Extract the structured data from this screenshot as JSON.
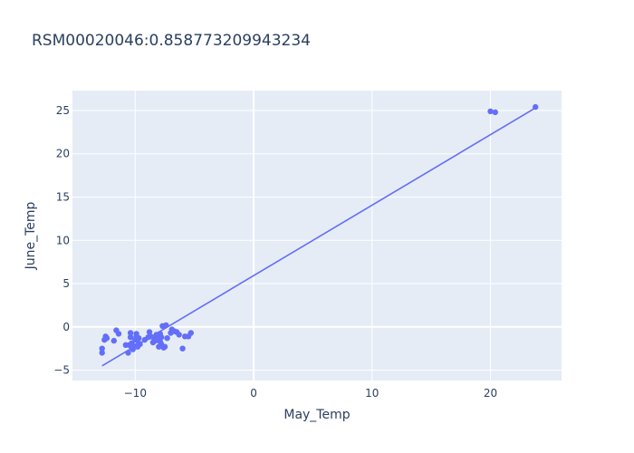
{
  "chart_data": {
    "type": "scatter",
    "title": "RSM00020046:0.858773209943234",
    "xlabel": "May_Temp",
    "ylabel": "June_Temp",
    "xlim": [
      -15.3,
      26.0
    ],
    "ylim": [
      -6.2,
      27.3
    ],
    "x_ticks": [
      -10,
      0,
      10,
      20
    ],
    "x_tick_labels": [
      "−10",
      "0",
      "10",
      "20"
    ],
    "y_ticks": [
      -5,
      0,
      5,
      10,
      15,
      20,
      25
    ],
    "y_tick_labels": [
      "−5",
      "0",
      "5",
      "10",
      "15",
      "20",
      "25"
    ],
    "grid": true,
    "legend": "none",
    "colors": {
      "plot_background": "#e5ecf6",
      "grid": "#ffffff",
      "marker": "#636efa",
      "trendline": "#636efa",
      "text": "#2a3f5f"
    },
    "series": [
      {
        "mode": "markers",
        "x": [
          -12.8,
          -12.8,
          -12.6,
          -12.5,
          -12.4,
          -11.8,
          -11.6,
          -11.4,
          -10.8,
          -10.6,
          -10.5,
          -10.4,
          -10.4,
          -10.3,
          -10.3,
          -10.2,
          -10.1,
          -10.0,
          -9.9,
          -9.9,
          -9.8,
          -9.7,
          -9.7,
          -9.6,
          -9.2,
          -8.9,
          -8.8,
          -8.7,
          -8.5,
          -8.4,
          -8.3,
          -8.2,
          -8.1,
          -8.0,
          -7.9,
          -7.9,
          -7.8,
          -7.8,
          -7.7,
          -7.6,
          -7.5,
          -7.4,
          -7.3,
          -7.0,
          -6.9,
          -6.7,
          -6.5,
          -6.3,
          -6.0,
          -5.8,
          -5.5,
          -5.3,
          20.0,
          20.4,
          23.8
        ],
        "y": [
          -2.5,
          -3.0,
          -1.5,
          -1.1,
          -1.3,
          -1.6,
          -0.4,
          -0.8,
          -2.1,
          -3.0,
          -2.1,
          -1.2,
          -0.7,
          -2.4,
          -1.9,
          -2.6,
          -2.2,
          -1.5,
          -0.8,
          -1.1,
          -2.3,
          -1.9,
          -1.3,
          -2.0,
          -1.5,
          -1.2,
          -0.6,
          -1.1,
          -1.8,
          -1.3,
          -1.6,
          -0.9,
          -1.4,
          -2.3,
          -0.8,
          -1.7,
          -1.2,
          -2.0,
          0.1,
          -2.4,
          -2.3,
          0.2,
          -1.3,
          -0.7,
          -0.3,
          -0.5,
          -0.6,
          -0.9,
          -2.5,
          -1.1,
          -1.1,
          -0.7,
          24.9,
          24.8,
          25.4
        ]
      },
      {
        "mode": "lines",
        "x": [
          -12.8,
          23.8
        ],
        "y": [
          -4.5,
          25.3
        ]
      }
    ]
  }
}
